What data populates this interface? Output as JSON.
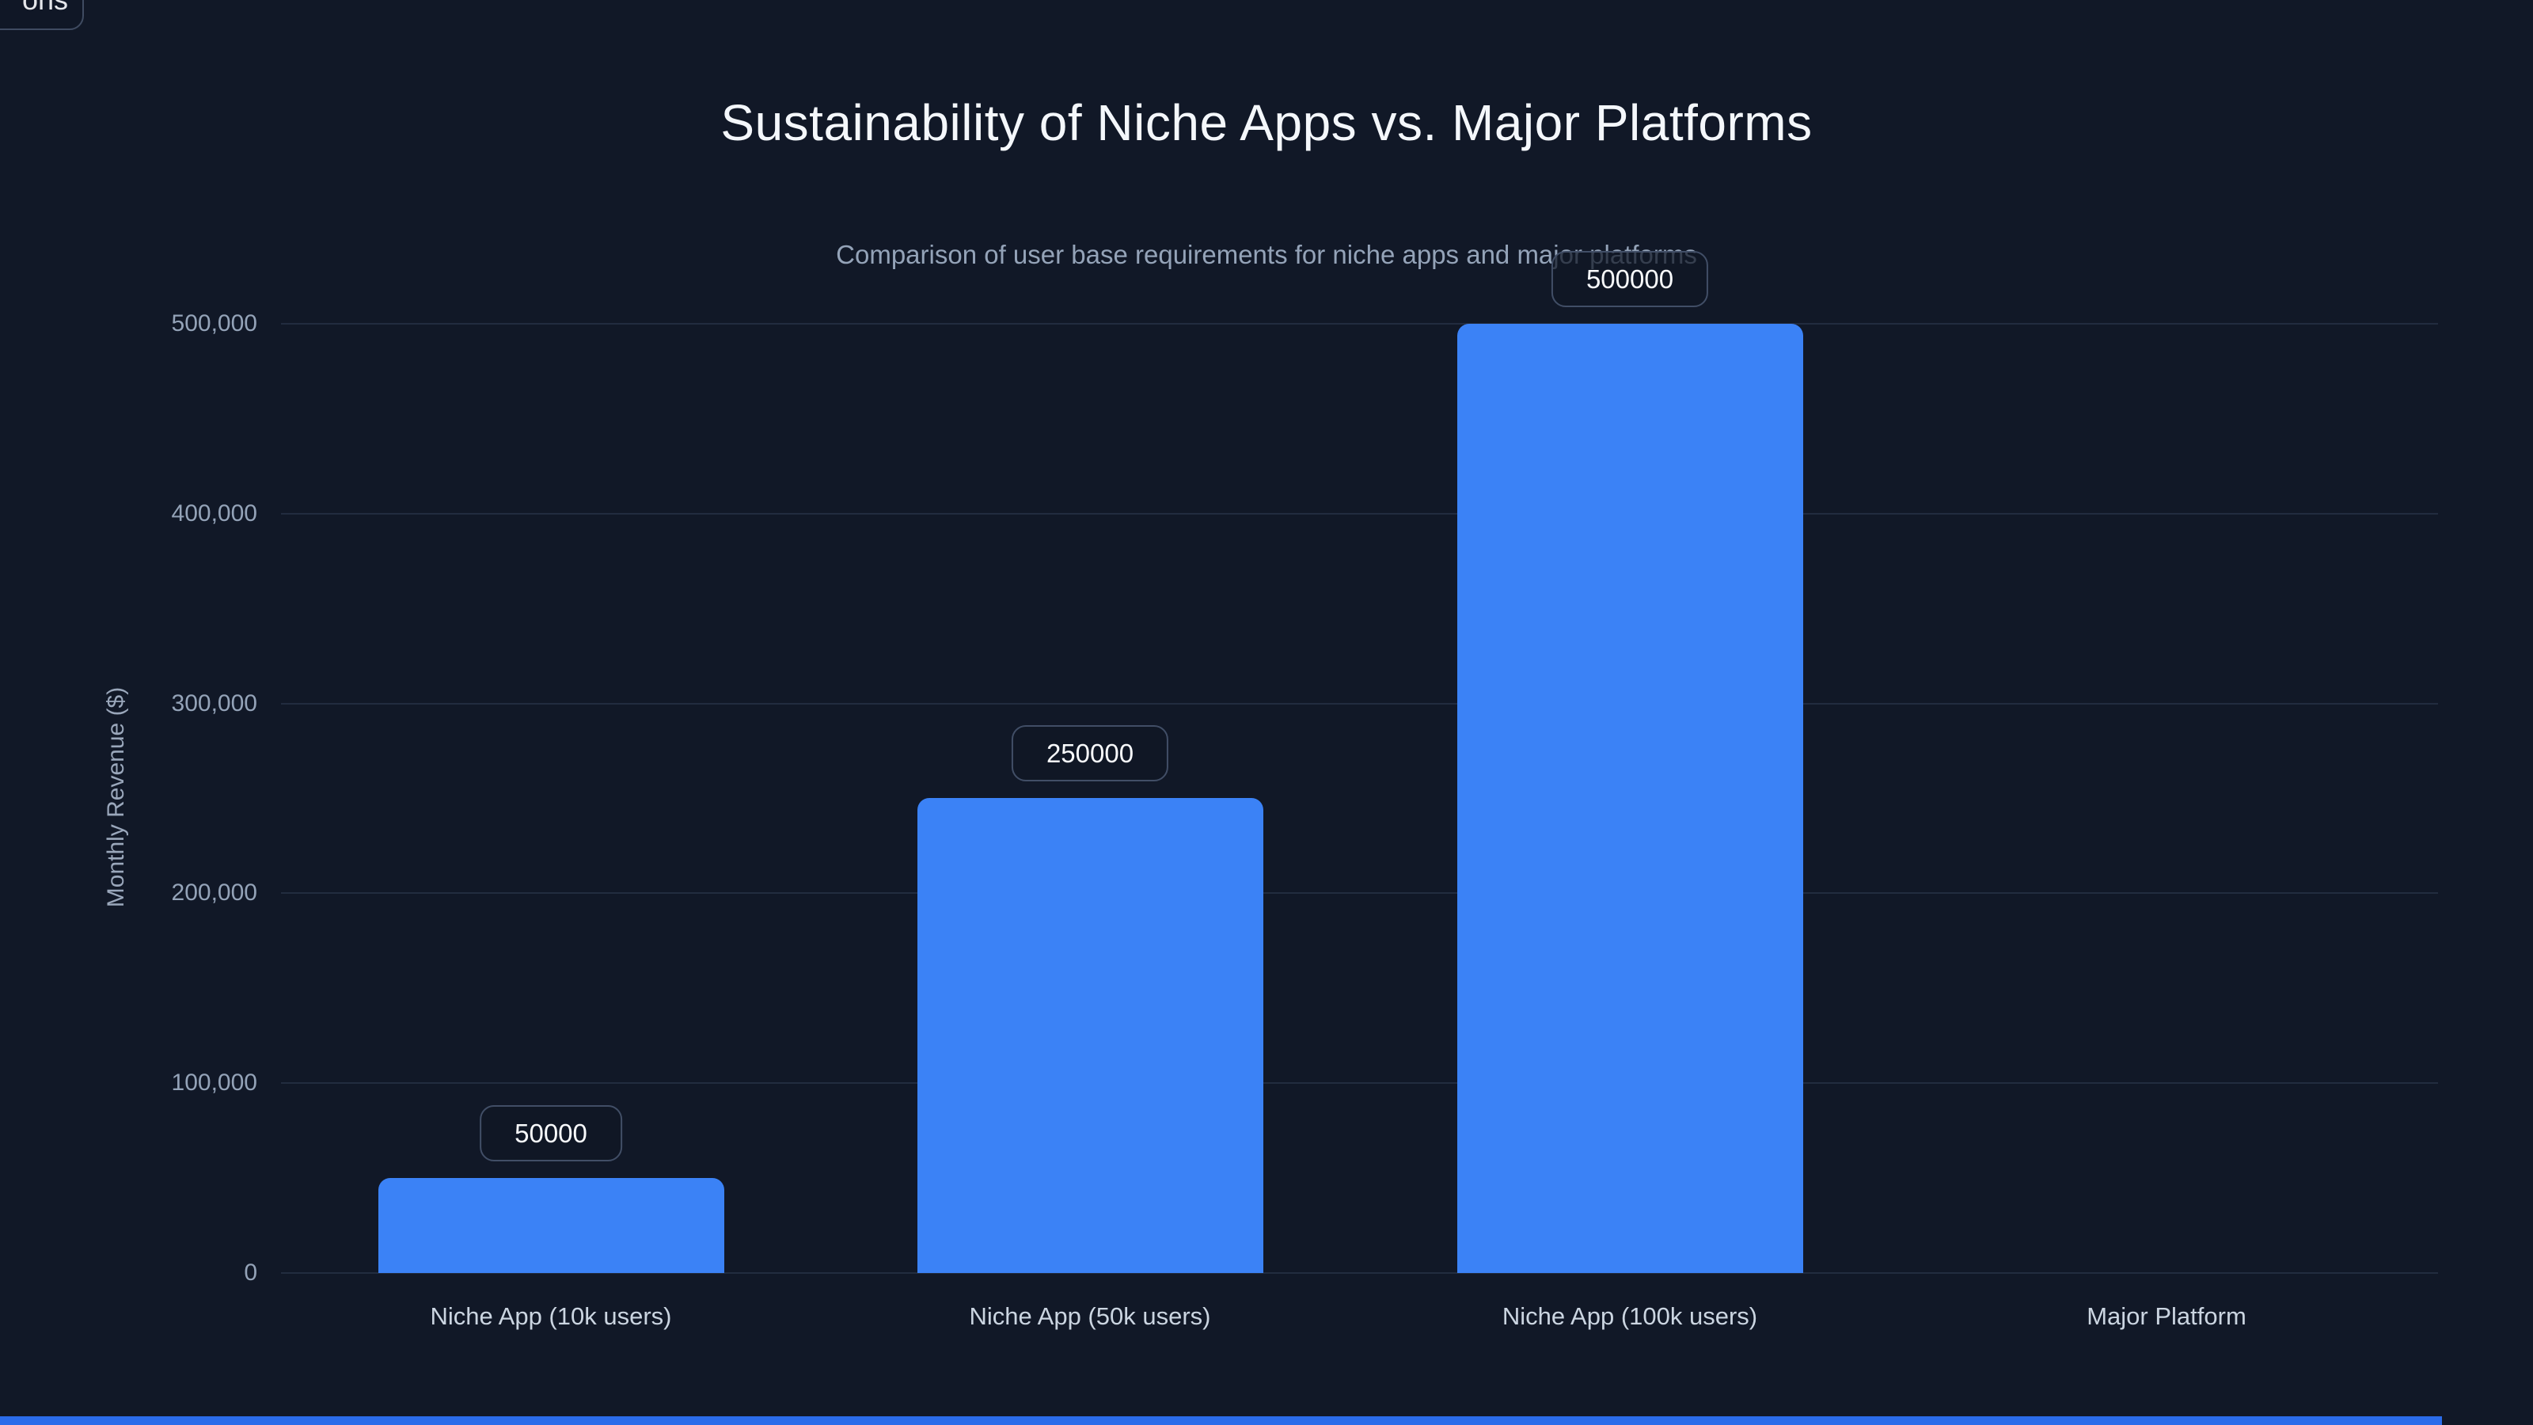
{
  "page": {
    "background_color": "#111827",
    "accent_color": "#3b82f6"
  },
  "clipped_chip": {
    "text": "ons"
  },
  "chart_data": {
    "type": "bar",
    "title": "Sustainability of Niche Apps vs. Major Platforms",
    "subtitle": "Comparison of user base requirements for niche apps and major platforms",
    "xlabel": "",
    "ylabel": "Monthly Revenue ($)",
    "categories": [
      "Niche App (10k users)",
      "Niche App (50k users)",
      "Niche App (100k users)",
      "Major Platform"
    ],
    "values": [
      50000,
      250000,
      500000,
      0
    ],
    "data_labels": [
      "50000",
      "250000",
      "500000"
    ],
    "ylim": [
      0,
      500000
    ],
    "ytick_labels": [
      "0",
      "100,000",
      "200,000",
      "300,000",
      "400,000",
      "500,000"
    ],
    "grid": true,
    "legend_position": "none",
    "bar_color": "#3b82f6",
    "title_color": "#f4f7fb",
    "subtitle_color": "#94a3b8",
    "tick_color": "#94a3b8",
    "x_tick_color": "#cbd5e1",
    "gridline_color": "#222c3f"
  }
}
